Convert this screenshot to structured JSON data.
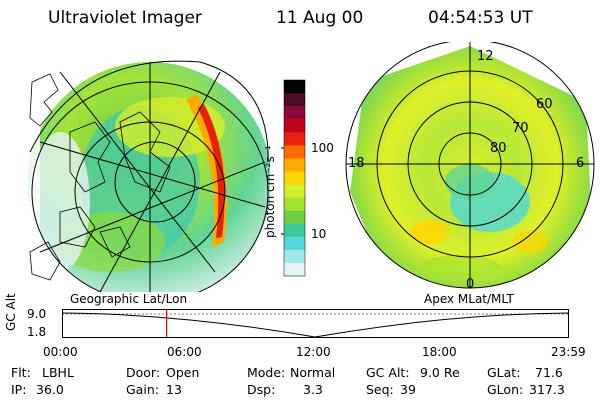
{
  "header": {
    "title": "Ultraviolet Imager",
    "date": "11 Aug 00",
    "time": "04:54:53 UT"
  },
  "left_panel": {
    "caption": "Geographic Lat/Lon"
  },
  "right_panel": {
    "caption": "Apex MLat/MLT",
    "mlt_labels": [
      "12",
      "18",
      "6",
      "0"
    ],
    "lat_labels": [
      "60",
      "70",
      "80"
    ]
  },
  "colorbar": {
    "unit_label": "photon cm⁻²s⁻¹",
    "ticks": [
      "100",
      "10"
    ],
    "scale": "log",
    "colors": [
      "#000000",
      "#4a0a2a",
      "#8b0a3a",
      "#c4001a",
      "#e8200a",
      "#ff6a00",
      "#ffaa00",
      "#ffd400",
      "#d6ef2a",
      "#a3e22f",
      "#6ccf4a",
      "#3fc89a",
      "#4fd8d8",
      "#9ee8e8",
      "#e4f4f4"
    ]
  },
  "timeline": {
    "y_axis_label": "GC Alt",
    "y_ticks": [
      "9.0",
      "1.8"
    ],
    "x_ticks": [
      "00:00",
      "06:00",
      "12:00",
      "18:00",
      "23:59"
    ],
    "cursor_time_hours": 4.915,
    "cursor_color": "#e00000"
  },
  "info": {
    "flt_label": "Flt:",
    "flt_value": "LBHL",
    "door_label": "Door:",
    "door_value": "Open",
    "mode_label": "Mode:",
    "mode_value": "Normal",
    "gcalt_label": "GC Alt:",
    "gcalt_value": "9.0 Re",
    "glat_label": "GLat:",
    "glat_value": "71.6",
    "ip_label": "IP:",
    "ip_value": "36.0",
    "gain_label": "Gain:",
    "gain_value": "13",
    "dsp_label": "Dsp:",
    "dsp_value": "3.3",
    "seq_label": "Seq:",
    "seq_value": "39",
    "glon_label": "GLon:",
    "glon_value": "317.3"
  }
}
